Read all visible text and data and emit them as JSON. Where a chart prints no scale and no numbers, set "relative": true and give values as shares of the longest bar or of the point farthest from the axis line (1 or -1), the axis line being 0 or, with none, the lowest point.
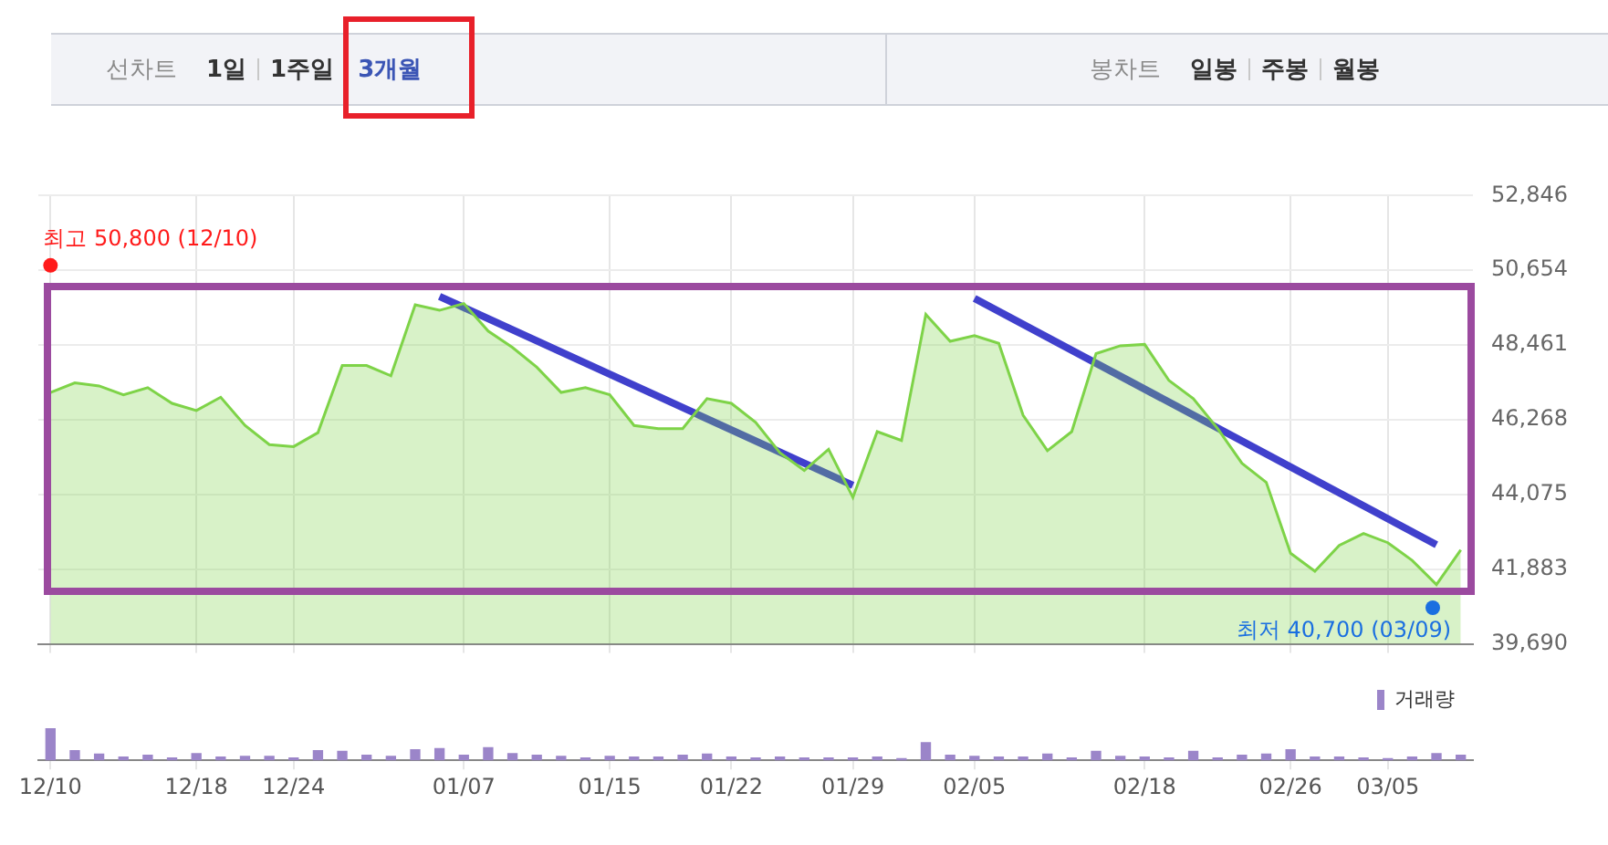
{
  "chart_data": [
    {
      "type": "area",
      "categories": [
        "12/10",
        null,
        null,
        null,
        null,
        null,
        "12/18",
        null,
        null,
        null,
        "12/24",
        null,
        null,
        null,
        null,
        null,
        null,
        "01/07",
        null,
        null,
        null,
        null,
        null,
        "01/15",
        null,
        null,
        null,
        null,
        "01/22",
        null,
        null,
        null,
        null,
        "01/29",
        null,
        null,
        null,
        null,
        "02/05",
        null,
        null,
        null,
        null,
        null,
        null,
        "02/18",
        null,
        null,
        null,
        null,
        null,
        "02/26",
        null,
        null,
        null,
        "03/05",
        null,
        null,
        null
      ],
      "series": [
        {
          "color": "#7ed348",
          "values": [
            47070,
            47350,
            47260,
            47000,
            47210,
            46750,
            46540,
            46930,
            46100,
            45540,
            45480,
            45890,
            47860,
            47860,
            47560,
            49640,
            49480,
            49680,
            48870,
            48390,
            47810,
            47070,
            47210,
            47000,
            46100,
            46010,
            46010,
            46890,
            46750,
            46190,
            45300,
            44780,
            45400,
            43990,
            45920,
            45660,
            49360,
            48570,
            48740,
            48510,
            46400,
            45360,
            45920,
            48210,
            48440,
            48480,
            47420,
            46890,
            46010,
            44990,
            44430,
            42350,
            41820,
            42580,
            42930,
            42660,
            42140,
            41430,
            42450
          ]
        },
        {
          "type": "line",
          "color": "#4040cc",
          "values": [
            null,
            null,
            null,
            null,
            null,
            null,
            null,
            null,
            null,
            null,
            null,
            null,
            null,
            null,
            null,
            null,
            49890,
            null,
            null,
            null,
            null,
            null,
            null,
            null,
            null,
            null,
            null,
            null,
            null,
            null,
            null,
            null,
            null,
            44340,
            null,
            null,
            null,
            null,
            null,
            null,
            null,
            null,
            null,
            null,
            null,
            null,
            null,
            null,
            null,
            null,
            null,
            null,
            null,
            null,
            null,
            null,
            null,
            null,
            null
          ]
        },
        {
          "type": "line",
          "color": "#4040cc",
          "values": [
            null,
            null,
            null,
            null,
            null,
            null,
            null,
            null,
            null,
            null,
            null,
            null,
            null,
            null,
            null,
            null,
            null,
            null,
            null,
            null,
            null,
            null,
            null,
            null,
            null,
            null,
            null,
            null,
            null,
            null,
            null,
            null,
            null,
            null,
            null,
            null,
            null,
            null,
            49830,
            null,
            null,
            null,
            null,
            null,
            null,
            null,
            null,
            null,
            null,
            null,
            null,
            null,
            null,
            null,
            null,
            null,
            null,
            42600,
            null
          ]
        }
      ],
      "ylim": [
        39690,
        52846
      ],
      "yticks": [
        {
          "value": 39690,
          "label": "39,690"
        },
        {
          "value": 41883,
          "label": "41,883"
        },
        {
          "value": 44075,
          "label": "44,075"
        },
        {
          "value": 46268,
          "label": "46,268"
        },
        {
          "value": 48461,
          "label": "48,461"
        },
        {
          "value": 50654,
          "label": "50,654"
        },
        {
          "value": 52846,
          "label": "52,846"
        }
      ],
      "grid": true,
      "tick_labels": "y",
      "annotations": [
        "선차트",
        "1일",
        "1주일",
        "3개월",
        "봉차트",
        "일봉",
        "주봉",
        "월봉",
        {
          "text": "최고 50,800 (12/10)",
          "x": "12/10",
          "y": 50800
        },
        "최저 40,700 (03/09)"
      ]
    },
    {
      "type": "bar",
      "relative": true,
      "categories": [
        "12/10",
        null,
        null,
        null,
        null,
        null,
        "12/18",
        null,
        null,
        null,
        "12/24",
        null,
        null,
        null,
        null,
        null,
        null,
        "01/07",
        null,
        null,
        null,
        null,
        null,
        "01/15",
        null,
        null,
        null,
        null,
        "01/22",
        null,
        null,
        null,
        null,
        "01/29",
        null,
        null,
        null,
        null,
        "02/05",
        null,
        null,
        null,
        null,
        null,
        null,
        "02/18",
        null,
        null,
        null,
        null,
        null,
        "02/26",
        null,
        null,
        null,
        "03/05",
        null,
        null,
        null
      ],
      "series": [
        {
          "name": "거래량",
          "color": "#9b85c9",
          "values": [
            1.0,
            0.3,
            0.19,
            0.1,
            0.16,
            0.075,
            0.21,
            0.1,
            0.125,
            0.125,
            0.075,
            0.3,
            0.275,
            0.16,
            0.125,
            0.325,
            0.36,
            0.16,
            0.39,
            0.21,
            0.16,
            0.125,
            0.075,
            0.125,
            0.1,
            0.1,
            0.16,
            0.19,
            0.1,
            0.075,
            0.1,
            0.075,
            0.075,
            0.075,
            0.1,
            0.05,
            0.55,
            0.16,
            0.125,
            0.1,
            0.1,
            0.19,
            0.075,
            0.275,
            0.125,
            0.1,
            0.075,
            0.275,
            0.075,
            0.16,
            0.19,
            0.325,
            0.1,
            0.1,
            0.075,
            0.05,
            0.1,
            0.21,
            0.16
          ]
        }
      ],
      "legend": "top right",
      "tick_labels": "x"
    }
  ]
}
